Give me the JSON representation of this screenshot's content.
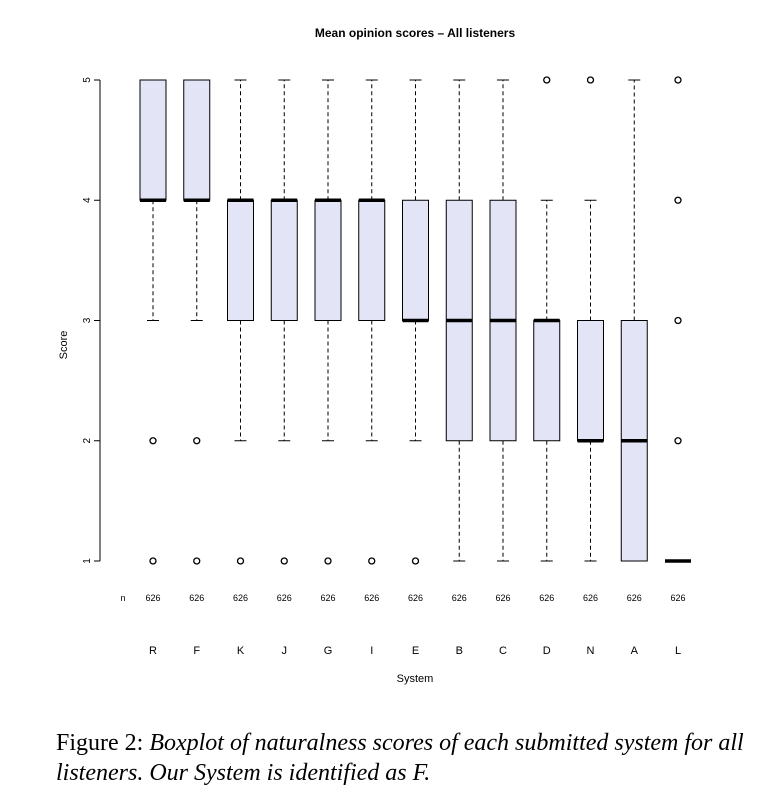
{
  "chart_data": {
    "type": "boxplot",
    "title": "Mean opinion scores – All listeners",
    "xlabel": "System",
    "ylabel": "Score",
    "ylim": [
      1,
      5
    ],
    "yticks": [
      1,
      2,
      3,
      4,
      5
    ],
    "n_label": "n",
    "grid": false,
    "categories": [
      "R",
      "F",
      "K",
      "J",
      "G",
      "I",
      "E",
      "B",
      "C",
      "D",
      "N",
      "A",
      "L"
    ],
    "n": [
      626,
      626,
      626,
      626,
      626,
      626,
      626,
      626,
      626,
      626,
      626,
      626,
      626
    ],
    "boxes": [
      {
        "q1": 4,
        "median": 4,
        "q3": 5,
        "whisker_low": 3,
        "whisker_high": 5,
        "outliers": [
          2,
          1
        ]
      },
      {
        "q1": 4,
        "median": 4,
        "q3": 5,
        "whisker_low": 3,
        "whisker_high": 5,
        "outliers": [
          2,
          1
        ]
      },
      {
        "q1": 3,
        "median": 4,
        "q3": 4,
        "whisker_low": 2,
        "whisker_high": 5,
        "outliers": [
          1
        ]
      },
      {
        "q1": 3,
        "median": 4,
        "q3": 4,
        "whisker_low": 2,
        "whisker_high": 5,
        "outliers": [
          1
        ]
      },
      {
        "q1": 3,
        "median": 4,
        "q3": 4,
        "whisker_low": 2,
        "whisker_high": 5,
        "outliers": [
          1
        ]
      },
      {
        "q1": 3,
        "median": 4,
        "q3": 4,
        "whisker_low": 2,
        "whisker_high": 5,
        "outliers": [
          1
        ]
      },
      {
        "q1": 3,
        "median": 3,
        "q3": 4,
        "whisker_low": 2,
        "whisker_high": 5,
        "outliers": [
          1
        ]
      },
      {
        "q1": 2,
        "median": 3,
        "q3": 4,
        "whisker_low": 1,
        "whisker_high": 5,
        "outliers": []
      },
      {
        "q1": 2,
        "median": 3,
        "q3": 4,
        "whisker_low": 1,
        "whisker_high": 5,
        "outliers": []
      },
      {
        "q1": 2,
        "median": 3,
        "q3": 3,
        "whisker_low": 1,
        "whisker_high": 4,
        "outliers": [
          5
        ]
      },
      {
        "q1": 2,
        "median": 2,
        "q3": 3,
        "whisker_low": 1,
        "whisker_high": 4,
        "outliers": [
          5
        ]
      },
      {
        "q1": 1,
        "median": 2,
        "q3": 3,
        "whisker_low": 1,
        "whisker_high": 5,
        "outliers": []
      },
      {
        "q1": 1,
        "median": 1,
        "q3": 1,
        "whisker_low": 1,
        "whisker_high": 1,
        "outliers": [
          5,
          4,
          3,
          2
        ]
      }
    ],
    "colors": {
      "box_fill": "#e3e5f7",
      "line": "#000000"
    }
  },
  "caption": {
    "lead": "Figure 2: ",
    "body": "Boxplot of naturalness scores of each submitted system for all listeners. Our System is identified as F."
  }
}
